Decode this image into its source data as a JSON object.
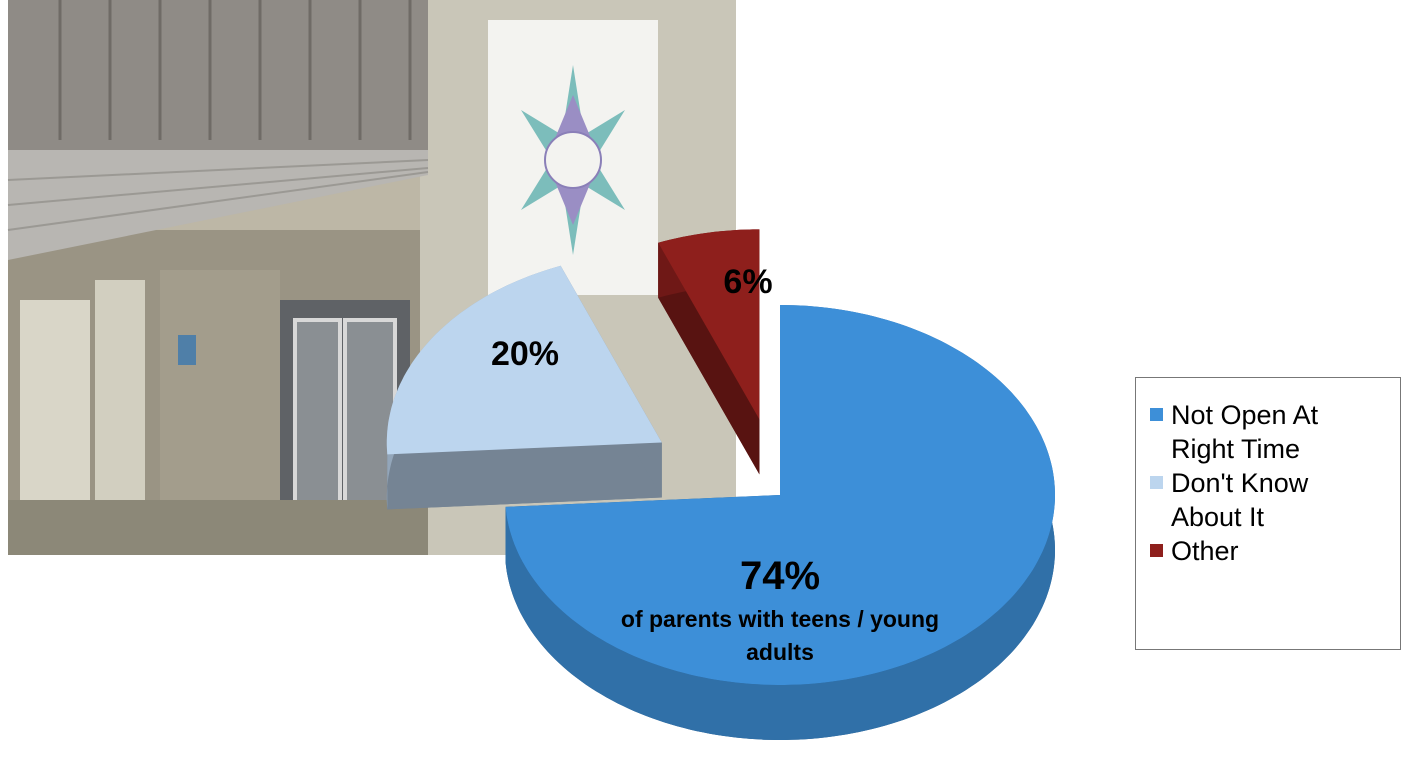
{
  "chart_data": {
    "type": "pie",
    "categories": [
      "Not Open At Right Time",
      "Don't Know About It",
      "Other"
    ],
    "values": [
      74,
      20,
      6
    ],
    "value_labels": [
      "74%",
      "20%",
      "6%"
    ],
    "colors": [
      "#3d8fd8",
      "#bcd5ee",
      "#8e1f1c"
    ],
    "annotation": "of parents with teens / young adults",
    "legend": "right"
  }
}
